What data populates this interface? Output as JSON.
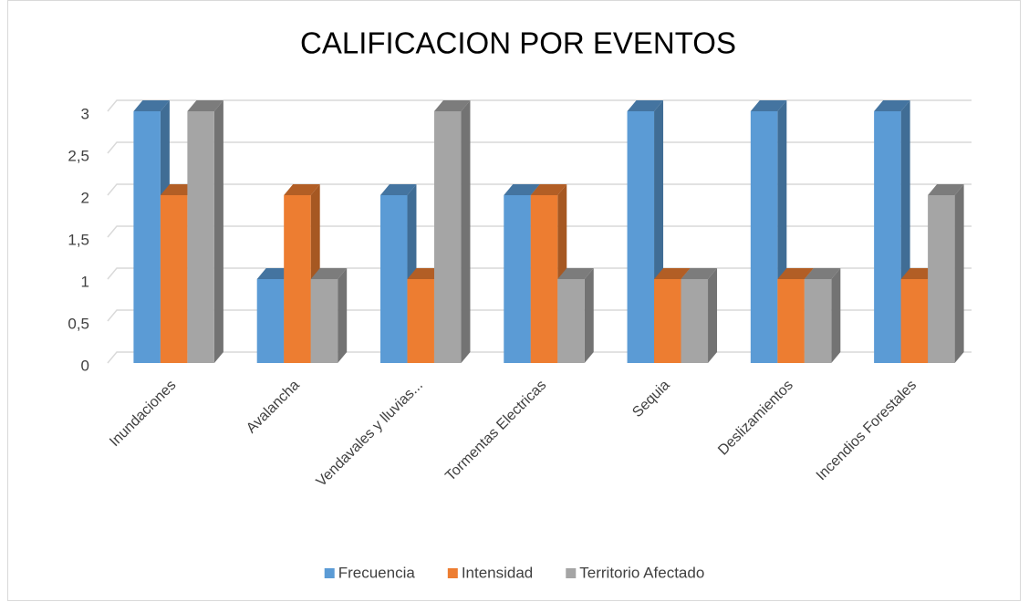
{
  "chart_data": {
    "type": "bar",
    "three_d": true,
    "title": "CALIFICACION POR EVENTOS",
    "categories": [
      "Inundaciones",
      "Avalancha",
      "Vendavales y lluvias...",
      "Tormentas Electricas",
      "Sequia",
      "Deslizamientos",
      "Incendios Forestales"
    ],
    "series": [
      {
        "name": "Frecuencia",
        "color": "#5b9bd5",
        "values": [
          3,
          1,
          2,
          2,
          3,
          3,
          3
        ]
      },
      {
        "name": "Intensidad",
        "color": "#ed7d31",
        "values": [
          2,
          2,
          1,
          2,
          1,
          1,
          1
        ]
      },
      {
        "name": "Territorio Afectado",
        "color": "#a5a5a5",
        "values": [
          3,
          1,
          3,
          1,
          1,
          1,
          2
        ]
      }
    ],
    "ylim": [
      0,
      3
    ],
    "yticks": [
      0,
      {
        "value": 0.5,
        "label": "0,5"
      },
      1,
      {
        "value": 1.5,
        "label": "1,5"
      },
      2,
      {
        "value": 2.5,
        "label": "2,5"
      },
      3
    ],
    "grid": true,
    "legend": "bottom"
  }
}
